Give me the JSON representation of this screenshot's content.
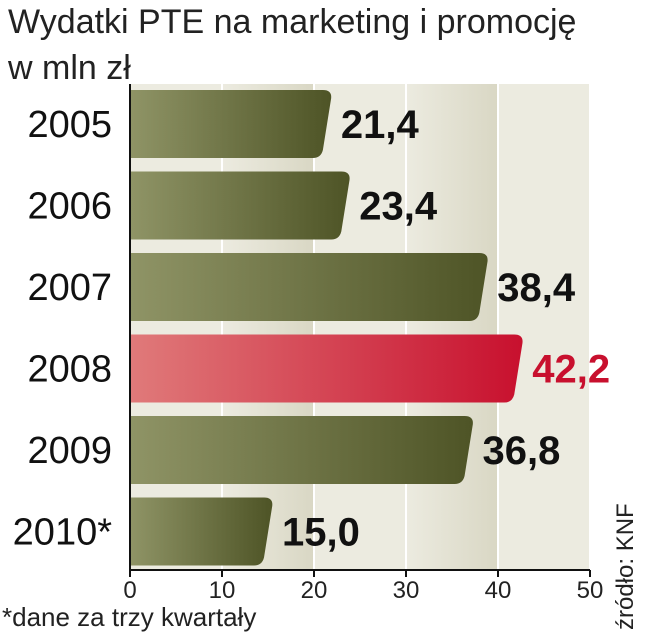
{
  "header": {
    "title": "Wydatki PTE na marketing i promocję",
    "subtitle": "w mln zł"
  },
  "footnote": "*dane za trzy kwartały",
  "source": "źródło: KNF",
  "colors": {
    "bar_normal_light": "#8f9466",
    "bar_normal_dark": "#4e5426",
    "bar_highlight_light": "#e07a7a",
    "bar_highlight_dark": "#c8102e",
    "label_normal": "#111111",
    "label_highlight": "#c8102e",
    "band_light": "#ecebe0",
    "band_mid": "#d9d7c4"
  },
  "chart_data": {
    "type": "bar",
    "orientation": "horizontal",
    "categories": [
      "2005",
      "2006",
      "2007",
      "2008",
      "2009",
      "2010*"
    ],
    "values": [
      21.4,
      23.4,
      38.4,
      42.2,
      36.8,
      15.0
    ],
    "value_labels": [
      "21,4",
      "23,4",
      "38,4",
      "42,2",
      "36,8",
      "15,0"
    ],
    "highlight_index": 3,
    "title": "Wydatki PTE na marketing i promocję",
    "unit": "w mln zł",
    "xlim": [
      0,
      50
    ],
    "x_ticks": [
      "0",
      "10",
      "20",
      "30",
      "40",
      "50"
    ],
    "grid": true
  }
}
